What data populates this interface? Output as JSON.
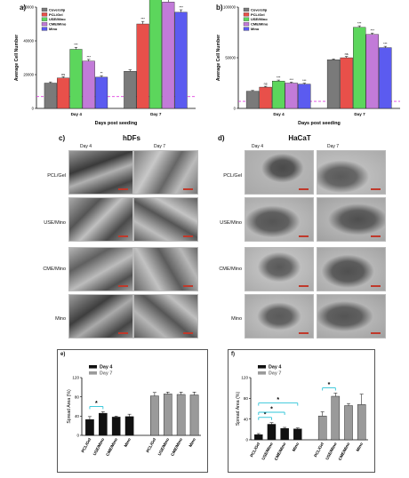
{
  "panels": {
    "a": {
      "letter": "a)"
    },
    "b": {
      "letter": "b)"
    },
    "c": {
      "letter": "c)",
      "title": "hDFs",
      "day4": "Day 4",
      "day7": "Day 7",
      "rows": [
        "PCL/Gel",
        "USE/Mino",
        "CME/Mino",
        "Mino"
      ]
    },
    "d": {
      "letter": "d)",
      "title": "HaCaT",
      "day4": "Day 4",
      "day7": "Day 7",
      "rows": [
        "PCL/Gel",
        "USE/Mino",
        "CME/Mino",
        "Mino"
      ]
    },
    "e": {
      "letter": "e)"
    },
    "f": {
      "letter": "f)"
    }
  },
  "colors": {
    "Coverslip": "#7a7a7a",
    "PCL/Gel": "#e8504a",
    "USE/Mino": "#5cd65c",
    "CME/Mino": "#c27bd8",
    "Mino": "#5b5bf0",
    "day4": "#111111",
    "day7": "#9a9a9a",
    "sig": "#2ec4d8",
    "baseline": "#e040e0"
  },
  "chart_data": [
    {
      "id": "a",
      "type": "bar",
      "ylabel": "Average Cell Number",
      "xlabel": "Days post seeding",
      "ylim": [
        0,
        60000
      ],
      "yticks": [
        0,
        20000,
        40000,
        60000
      ],
      "categories": [
        "Day 4",
        "Day 7"
      ],
      "series": [
        {
          "name": "Coverslip",
          "values": [
            15000,
            22000
          ],
          "err": [
            700,
            800
          ],
          "labels": [
            "",
            ""
          ]
        },
        {
          "name": "PCL/Gel",
          "values": [
            18000,
            50000
          ],
          "err": [
            800,
            1500
          ],
          "labels": [
            "ns",
            "***"
          ]
        },
        {
          "name": "USE/Mino",
          "values": [
            35000,
            69000
          ],
          "err": [
            1200,
            1500
          ],
          "labels": [
            "***",
            "***"
          ]
        },
        {
          "name": "CME/Mino",
          "values": [
            28000,
            63000
          ],
          "err": [
            1000,
            1500
          ],
          "labels": [
            "***",
            "***"
          ]
        },
        {
          "name": "Mino",
          "values": [
            18500,
            57000
          ],
          "err": [
            900,
            1400
          ],
          "labels": [
            "**",
            "***"
          ]
        }
      ],
      "baseline": 7000
    },
    {
      "id": "b",
      "type": "bar",
      "ylabel": "Average Cell Number",
      "xlabel": "Days post seeding",
      "ylim": [
        0,
        100000
      ],
      "yticks": [
        0,
        50000,
        100000
      ],
      "categories": [
        "Day 4",
        "Day 7"
      ],
      "series": [
        {
          "name": "Coverslip",
          "values": [
            17000,
            48000
          ],
          "err": [
            700,
            900
          ],
          "labels": [
            "",
            ""
          ]
        },
        {
          "name": "PCL/Gel",
          "values": [
            21000,
            50000
          ],
          "err": [
            800,
            1200
          ],
          "labels": [
            "ns",
            "ns"
          ]
        },
        {
          "name": "USE/Mino",
          "values": [
            27000,
            80000
          ],
          "err": [
            1000,
            1500
          ],
          "labels": [
            "***",
            "***"
          ]
        },
        {
          "name": "CME/Mino",
          "values": [
            25000,
            73000
          ],
          "err": [
            900,
            1400
          ],
          "labels": [
            "***",
            "***"
          ]
        },
        {
          "name": "Mino",
          "values": [
            24000,
            60000
          ],
          "err": [
            900,
            1300
          ],
          "labels": [
            "***",
            "***"
          ]
        }
      ],
      "baseline": 7000
    },
    {
      "id": "e",
      "type": "bar",
      "ylabel": "Spread Area (%)",
      "ylim": [
        0,
        120
      ],
      "yticks": [
        0,
        40,
        80,
        120
      ],
      "legend": [
        "Day 4",
        "Day 7"
      ],
      "categories": [
        "PCL/Gel",
        "USE/Mino",
        "CME/Mino",
        "Mino",
        "PCL/Gel",
        "USE/Mino",
        "CME/Mino",
        "Mino"
      ],
      "groups": [
        "Day 4",
        "Day 4",
        "Day 4",
        "Day 4",
        "Day 7",
        "Day 7",
        "Day 7",
        "Day 7"
      ],
      "values": [
        33,
        46,
        38,
        39,
        82,
        86,
        85,
        84
      ],
      "err": [
        6,
        3,
        2,
        5,
        7,
        4,
        5,
        6
      ],
      "sig": [
        {
          "from": 0,
          "to": 1,
          "label": "*"
        }
      ]
    },
    {
      "id": "f",
      "type": "bar",
      "ylabel": "Spread Area (%)",
      "ylim": [
        0,
        120
      ],
      "yticks": [
        0,
        40,
        80,
        120
      ],
      "legend": [
        "Day 4",
        "Day 7"
      ],
      "categories": [
        "PCL/Gel",
        "USE/Mino",
        "CME/Mino",
        "Mino",
        "PCL/Gel",
        "USE/Mino",
        "CME/Mino",
        "Mino"
      ],
      "groups": [
        "Day 4",
        "Day 4",
        "Day 4",
        "Day 4",
        "Day 7",
        "Day 7",
        "Day 7",
        "Day 7"
      ],
      "values": [
        10,
        30,
        22,
        21,
        46,
        84,
        66,
        68
      ],
      "err": [
        2,
        3,
        2,
        2,
        8,
        6,
        4,
        20
      ],
      "sig": [
        {
          "from": 0,
          "to": 1,
          "label": "*"
        },
        {
          "from": 0,
          "to": 2,
          "label": "*"
        },
        {
          "from": 0,
          "to": 3,
          "label": "*"
        },
        {
          "from": 4,
          "to": 5,
          "label": "*"
        }
      ]
    }
  ]
}
